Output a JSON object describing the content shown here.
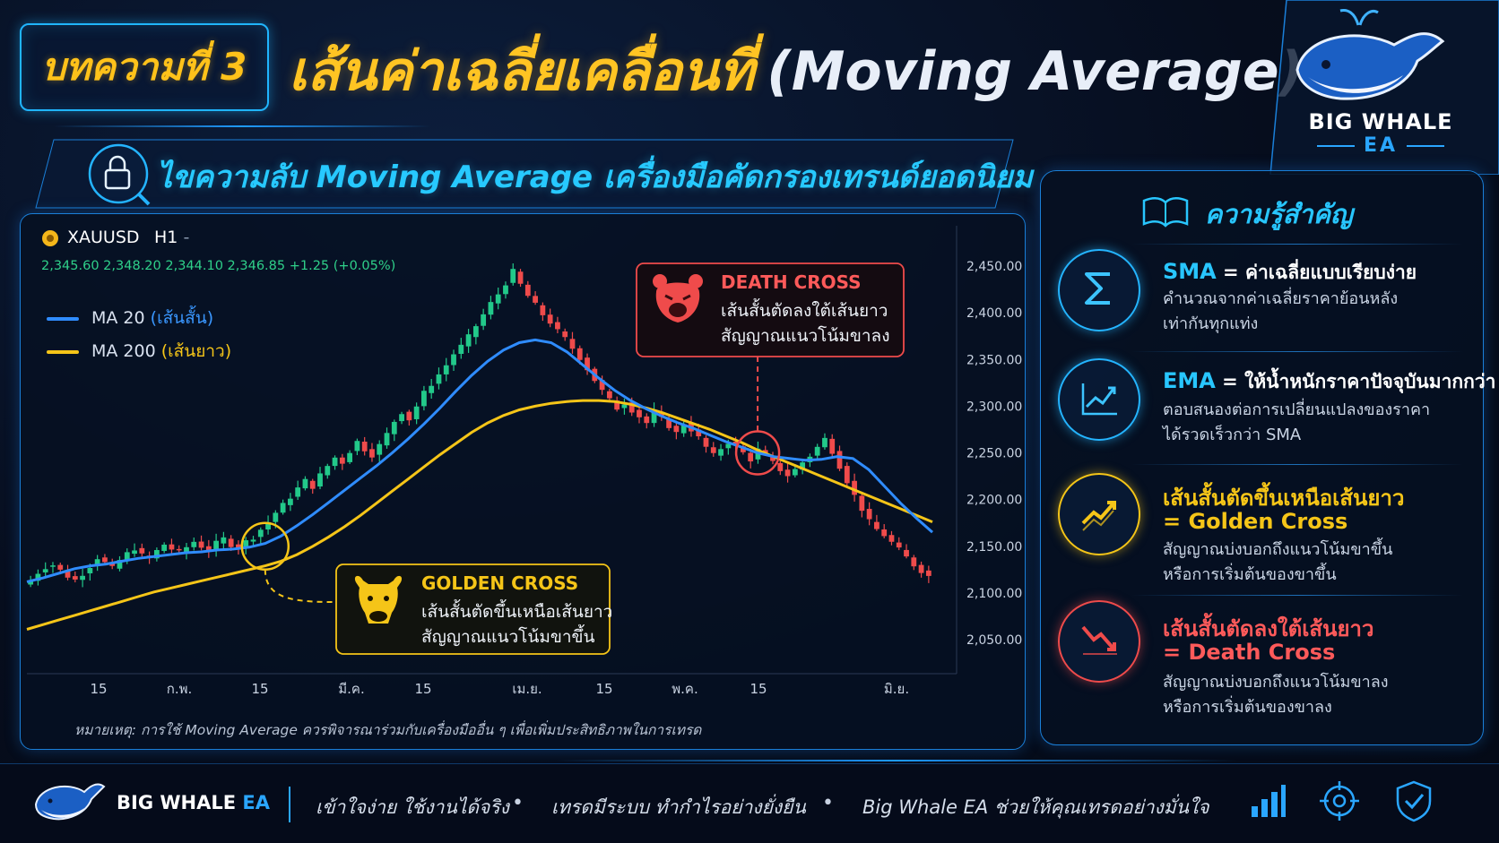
{
  "header": {
    "badge": "บทความที่ 3",
    "title_th": "เส้นค่าเฉลี่ยเคลื่อนที่",
    "title_en": "(Moving Average)"
  },
  "brand": {
    "name": "BIG WHALE",
    "suffix": "EA"
  },
  "subtitle": "ไขความลับ Moving Average เครื่องมือคัดกรองเทรนด์ยอดนิยม",
  "chart": {
    "symbol": "XAUUSD",
    "timeframe": "H1",
    "tf_suffix": "-",
    "ohlc": "2,345.60   2,348.20   2,344.10   2,346.85   +1.25 (+0.05%)",
    "legend": [
      {
        "label": "MA 20 ",
        "note": "(เส้นสั้น)",
        "color": "#2f8cff"
      },
      {
        "label": "MA 200 ",
        "note": "(เส้นยาว)",
        "color": "#f5c518"
      }
    ],
    "note": "หมายเหตุ: การใช้ Moving Average ควรพิจารณาร่วมกับเครื่องมืออื่น ๆ เพื่อเพิ่มประสิทธิภาพในการเทรด",
    "golden_cross": {
      "title": "GOLDEN CROSS",
      "line1": "เส้นสั้นตัดขึ้นเหนือเส้นยาว",
      "line2": "สัญญาณแนวโน้มขาขึ้น"
    },
    "death_cross": {
      "title": "DEATH CROSS",
      "line1": "เส้นสั้นตัดลงใต้เส้นยาว",
      "line2": "สัญญาณแนวโน้มขาลง"
    }
  },
  "info": {
    "title": "ความรู้สำคัญ",
    "items": [
      {
        "icon": "sigma-icon",
        "title_a": "SMA",
        "title_b": " = ค่าเฉลี่ยแบบเรียบง่าย",
        "title2": "",
        "desc1": "คำนวณจากค่าเฉลี่ยราคาย้อนหลัง",
        "desc2": "เท่ากันทุกแท่ง"
      },
      {
        "icon": "growth-chart-icon",
        "title_a": "EMA",
        "title_b": " = ให้น้ำหนักราคาปัจจุบันมากกว่า",
        "title2": "",
        "desc1": "ตอบสนองต่อการเปลี่ยนแปลงของราคา",
        "desc2": "ได้รวดเร็วกว่า SMA"
      },
      {
        "icon": "trend-up-icon",
        "title_a": "เส้นสั้นตัดขึ้นเหนือเส้นยาว",
        "title_b": "",
        "title2": "= Golden Cross",
        "desc1": "สัญญาณบ่งบอกถึงแนวโน้มขาขึ้น",
        "desc2": "หรือการเริ่มต้นของขาขึ้น"
      },
      {
        "icon": "trend-down-icon",
        "title_a": "เส้นสั้นตัดลงใต้เส้นยาว",
        "title_b": "",
        "title2": "= Death Cross",
        "desc1": "สัญญาณบ่งบอกถึงแนวโน้มขาลง",
        "desc2": "หรือการเริ่มต้นของขาลง"
      }
    ]
  },
  "footer": {
    "brand": "BIG WHALE ",
    "brand_ea": "EA",
    "slogans": [
      "เข้าใจง่าย ใช้งานได้จริง",
      "เทรดมีระบบ ทำกำไรอย่างยั่งยืน",
      "Big Whale EA ช่วยให้คุณเทรดอย่างมั่นใจ"
    ],
    "dot": "•"
  },
  "chart_data": {
    "type": "line",
    "title": "XAUUSD H1",
    "xlabel": "",
    "ylabel": "",
    "ylim": [
      2050,
      2450
    ],
    "y_ticks": [
      "2,450.00",
      "2,400.00",
      "2,350.00",
      "2,300.00",
      "2,250.00",
      "2,200.00",
      "2,150.00",
      "2,100.00",
      "2,050.00"
    ],
    "x_ticks": [
      "15",
      "ก.พ.",
      "15",
      "มี.ค.",
      "15",
      "เม.ย.",
      "15",
      "พ.ค.",
      "15",
      "มิ.ย."
    ],
    "legend_position": "top-left",
    "grid": false,
    "price_path": [
      2113,
      2122,
      2128,
      2130,
      2124,
      2118,
      2114,
      2121,
      2129,
      2138,
      2132,
      2126,
      2135,
      2142,
      2148,
      2140,
      2137,
      2145,
      2152,
      2147,
      2143,
      2149,
      2155,
      2150,
      2146,
      2153,
      2158,
      2152,
      2149,
      2155,
      2160,
      2168,
      2176,
      2186,
      2194,
      2203,
      2212,
      2220,
      2214,
      2226,
      2236,
      2245,
      2240,
      2252,
      2262,
      2254,
      2248,
      2258,
      2270,
      2284,
      2294,
      2286,
      2300,
      2314,
      2324,
      2334,
      2344,
      2356,
      2364,
      2374,
      2386,
      2398,
      2410,
      2420,
      2432,
      2444,
      2430,
      2418,
      2408,
      2398,
      2390,
      2380,
      2372,
      2362,
      2352,
      2340,
      2328,
      2316,
      2306,
      2298,
      2304,
      2296,
      2289,
      2282,
      2294,
      2286,
      2279,
      2271,
      2282,
      2275,
      2266,
      2256,
      2247,
      2255,
      2262,
      2257,
      2250,
      2243,
      2253,
      2247,
      2239,
      2232,
      2226,
      2232,
      2240,
      2247,
      2256,
      2265,
      2252,
      2236,
      2220,
      2204,
      2190,
      2176,
      2168,
      2162,
      2154,
      2146,
      2138,
      2130,
      2124,
      2118
    ],
    "series": [
      {
        "name": "MA 20 (เส้นสั้น)",
        "color": "#2f8cff",
        "values": [
          2112,
          2116,
          2121,
          2126,
          2129,
          2131,
          2134,
          2137,
          2139,
          2141,
          2143,
          2144,
          2146,
          2147,
          2149,
          2153,
          2161,
          2172,
          2184,
          2197,
          2210,
          2223,
          2236,
          2250,
          2265,
          2281,
          2298,
          2316,
          2333,
          2348,
          2360,
          2368,
          2371,
          2368,
          2358,
          2344,
          2330,
          2317,
          2306,
          2297,
          2289,
          2282,
          2276,
          2269,
          2262,
          2256,
          2250,
          2246,
          2244,
          2242,
          2243,
          2246,
          2244,
          2232,
          2214,
          2196,
          2180,
          2165
        ]
      },
      {
        "name": "MA 200 (เส้นยาว)",
        "color": "#f5c518",
        "values": [
          2061,
          2066,
          2071,
          2076,
          2081,
          2086,
          2091,
          2096,
          2101,
          2105,
          2109,
          2113,
          2117,
          2121,
          2125,
          2129,
          2134,
          2141,
          2150,
          2160,
          2171,
          2183,
          2196,
          2209,
          2222,
          2235,
          2248,
          2260,
          2272,
          2282,
          2290,
          2296,
          2300,
          2303,
          2305,
          2306,
          2306,
          2305,
          2302,
          2298,
          2293,
          2287,
          2281,
          2275,
          2268,
          2261,
          2253,
          2246,
          2239,
          2232,
          2225,
          2218,
          2211,
          2204,
          2197,
          2190,
          2183,
          2176
        ]
      }
    ],
    "annotations": [
      {
        "label": "GOLDEN CROSS",
        "x_index": 15,
        "y": 2150
      },
      {
        "label": "DEATH CROSS",
        "x_index": 46,
        "y": 2250
      }
    ],
    "colors": {
      "up": "#22c98a",
      "down": "#ef4b4b"
    }
  }
}
